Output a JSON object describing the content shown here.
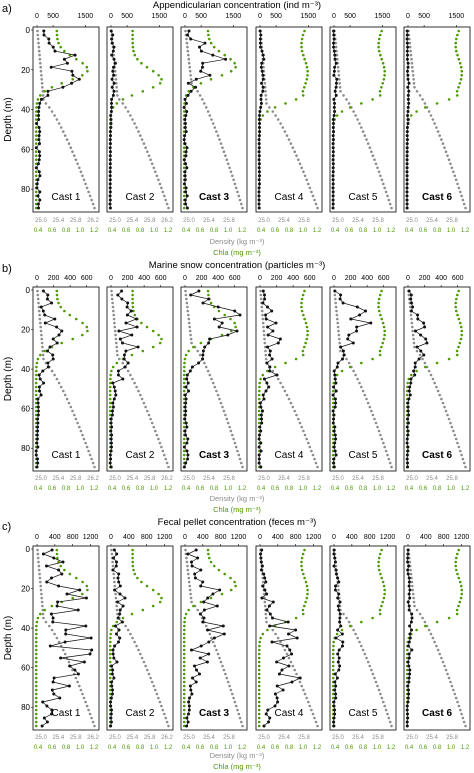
{
  "figure": {
    "colors": {
      "concentration": "#111111",
      "density": "#8c8c8c",
      "chla": "#4e9a06",
      "frame": "#000000"
    },
    "axis_labels": {
      "depth": "Depth (m)",
      "density": "Density (kg m⁻³)",
      "chla": "Chla (mg m⁻³)"
    },
    "depth_ticks": [
      "0",
      "20",
      "40",
      "60",
      "80"
    ],
    "density_ticks_casts_1_2": [
      "25.0",
      "25.4",
      "25.8",
      "26.2"
    ],
    "density_ticks_casts_3_6": [
      "25.0",
      "25.4",
      "25.8"
    ],
    "chla_ticks": [
      "0.4",
      "0.6",
      "0.8",
      "1.0",
      "1.2"
    ]
  },
  "chart_data": [
    {
      "type": "scatter",
      "panel_label": "a)",
      "title": "Appendicularian concentration (ind m⁻³)",
      "casts": [
        "Cast 1",
        "Cast 2",
        "Cast 3",
        "Cast 4",
        "Cast 5",
        "Cast 6"
      ],
      "bold_casts": [
        3,
        6
      ],
      "top_ticks": [
        "0",
        "500",
        "1500"
      ],
      "conc_max": 1800,
      "depth_range": [
        0,
        90
      ],
      "series": {
        "cast1": {
          "peak": 1500,
          "peak_depth": 18,
          "spread": 12
        },
        "cast2": {
          "peak": 150,
          "peak_depth": 20,
          "spread": 20
        },
        "cast3": {
          "peak": 1300,
          "peak_depth": 16,
          "spread": 10
        },
        "cast4": {
          "peak": 200,
          "peak_depth": 20,
          "spread": 15
        },
        "cast5": {
          "peak": 100,
          "peak_depth": 25,
          "spread": 20
        },
        "cast6": {
          "peak": 50,
          "peak_depth": 30,
          "spread": 20
        }
      }
    },
    {
      "type": "scatter",
      "panel_label": "b)",
      "title": "Marine snow concentration (particles m⁻³)",
      "casts": [
        "Cast 1",
        "Cast 2",
        "Cast 3",
        "Cast 4",
        "Cast 5",
        "Cast 6"
      ],
      "bold_casts": [
        3,
        6
      ],
      "top_ticks": [
        "0",
        "200",
        "400",
        "600"
      ],
      "conc_max": 700,
      "depth_range": [
        0,
        90
      ],
      "series": {
        "cast1": {
          "peak": 250,
          "peak_depth": 20,
          "spread": 25
        },
        "cast2": {
          "peak": 300,
          "peak_depth": 22,
          "spread": 25
        },
        "cast3": {
          "peak": 650,
          "peak_depth": 18,
          "spread": 15
        },
        "cast4": {
          "peak": 300,
          "peak_depth": 30,
          "spread": 20
        },
        "cast5": {
          "peak": 500,
          "peak_depth": 18,
          "spread": 12
        },
        "cast6": {
          "peak": 200,
          "peak_depth": 25,
          "spread": 20
        }
      }
    },
    {
      "type": "scatter",
      "panel_label": "c)",
      "title": "Fecal pellet concentration (feces m⁻³)",
      "casts": [
        "Cast 1",
        "Cast 2",
        "Cast 3",
        "Cast 4",
        "Cast 5",
        "Cast 6"
      ],
      "bold_casts": [
        3,
        6
      ],
      "top_ticks": [
        "0",
        "400",
        "800",
        "1200"
      ],
      "conc_max": 1300,
      "depth_range": [
        0,
        90
      ],
      "series": {
        "cast1": {
          "peak": 1100,
          "peak_depth": 40,
          "spread": 40
        },
        "cast2": {
          "peak": 300,
          "peak_depth": 30,
          "spread": 30
        },
        "cast3": {
          "peak": 800,
          "peak_depth": 35,
          "spread": 30
        },
        "cast4": {
          "peak": 900,
          "peak_depth": 55,
          "spread": 25
        },
        "cast5": {
          "peak": 200,
          "peak_depth": 40,
          "spread": 30
        },
        "cast6": {
          "peak": 100,
          "peak_depth": 40,
          "spread": 30
        }
      }
    }
  ]
}
